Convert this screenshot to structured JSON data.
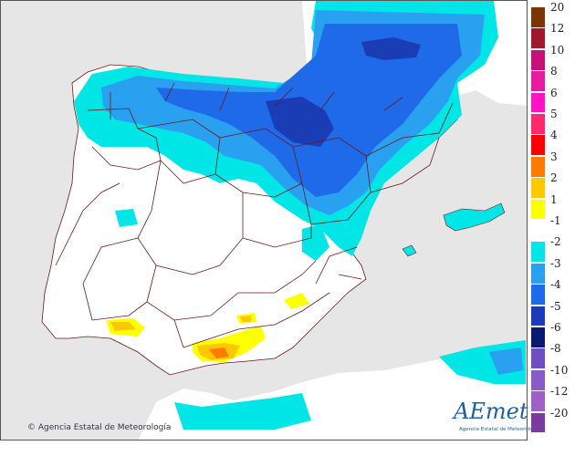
{
  "map": {
    "copyright": "Agencia Estatal de Meteorología",
    "copyright_symbol": "©",
    "logo_text": "AEmet",
    "logo_subtitle": "Agencia Estatal de Meteorología"
  },
  "legend": {
    "entries": [
      {
        "label": "20",
        "color": "#7a3500"
      },
      {
        "label": "12",
        "color": "#a0182e"
      },
      {
        "label": "10",
        "color": "#c8107a"
      },
      {
        "label": "8",
        "color": "#e81aa0"
      },
      {
        "label": "6",
        "color": "#ff14c8"
      },
      {
        "label": "5",
        "color": "#ff2a6e"
      },
      {
        "label": "4",
        "color": "#ff0000"
      },
      {
        "label": "3",
        "color": "#ff7a00"
      },
      {
        "label": "2",
        "color": "#ffc800"
      },
      {
        "label": "1",
        "color": "#ffff00"
      },
      {
        "label": "-1",
        "color": "#ffffff"
      },
      {
        "label": "-2",
        "color": "#00e6e6"
      },
      {
        "label": "-3",
        "color": "#2aa0f0"
      },
      {
        "label": "-4",
        "color": "#1e6ae8"
      },
      {
        "label": "-5",
        "color": "#1a3cb4"
      },
      {
        "label": "-6",
        "color": "#0a1a6e"
      },
      {
        "label": "-8",
        "color": "#6e4ec0"
      },
      {
        "label": "-10",
        "color": "#8a5ac8"
      },
      {
        "label": "-12",
        "color": "#9e60c8"
      },
      {
        "label": "-20",
        "color": "#7a3aa0"
      }
    ]
  }
}
